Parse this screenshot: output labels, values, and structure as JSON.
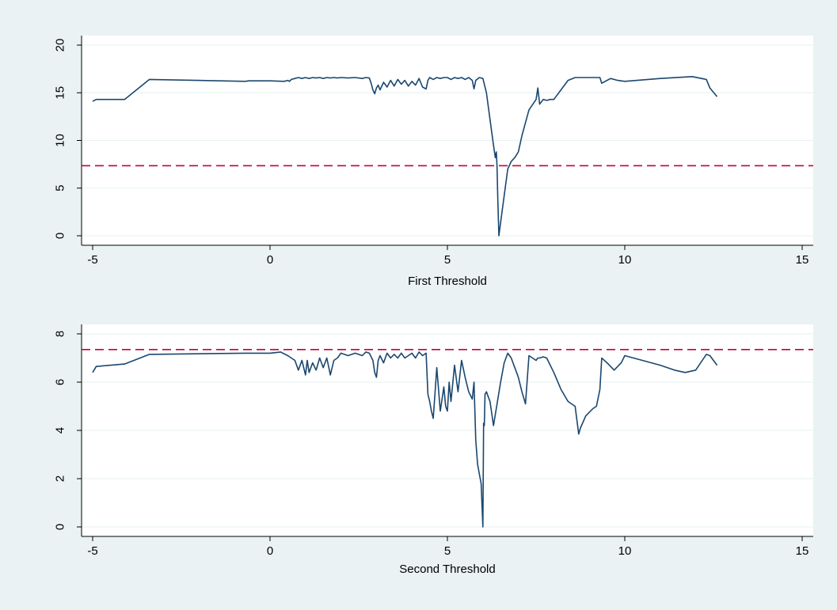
{
  "colors": {
    "outer_background": "#eaf2f3",
    "plot_background": "#ffffff",
    "grid": "#eaf2f3",
    "series_line": "#1a476f",
    "reference_line": "#c10534",
    "axis": "#000000"
  },
  "chart_data": [
    {
      "type": "line",
      "xlabel": "First Threshold",
      "ylabel": "",
      "xlim": [
        -5,
        15
      ],
      "ylim": [
        0,
        20
      ],
      "xticks": [
        -5,
        0,
        5,
        10,
        15
      ],
      "yticks": [
        0,
        5,
        10,
        15,
        20
      ],
      "grid": true,
      "reference_line": {
        "y": 7.35,
        "style": "dashed"
      },
      "series": [
        {
          "x": [
            -5.0,
            -4.9,
            -4.1,
            -3.4,
            -0.7,
            -0.6,
            0.0,
            0.4,
            0.5,
            0.55,
            0.6,
            0.7,
            0.8,
            0.9,
            1.0,
            1.1,
            1.2,
            1.3,
            1.4,
            1.5,
            1.6,
            1.7,
            1.8,
            1.9,
            2.0,
            2.2,
            2.4,
            2.6,
            2.7,
            2.8,
            2.85,
            2.9,
            2.95,
            3.0,
            3.05,
            3.1,
            3.2,
            3.3,
            3.4,
            3.5,
            3.6,
            3.7,
            3.8,
            3.9,
            4.0,
            4.1,
            4.2,
            4.3,
            4.4,
            4.45,
            4.5,
            4.6,
            4.7,
            4.8,
            4.9,
            5.0,
            5.1,
            5.2,
            5.3,
            5.4,
            5.5,
            5.6,
            5.7,
            5.75,
            5.8,
            5.9,
            6.0,
            6.1,
            6.2,
            6.3,
            6.35,
            6.38,
            6.4,
            6.42,
            6.45,
            6.5,
            6.6,
            6.7,
            6.8,
            6.9,
            7.0,
            7.1,
            7.3,
            7.5,
            7.55,
            7.6,
            7.7,
            7.8,
            7.9,
            8.0,
            8.2,
            8.4,
            8.6,
            9.3,
            9.35,
            9.6,
            9.8,
            10.0,
            11.0,
            11.9,
            12.3,
            12.4,
            12.6
          ],
          "values": [
            14.1,
            14.3,
            14.3,
            16.4,
            16.2,
            16.25,
            16.25,
            16.2,
            16.3,
            16.2,
            16.4,
            16.5,
            16.6,
            16.5,
            16.6,
            16.5,
            16.6,
            16.55,
            16.6,
            16.5,
            16.6,
            16.55,
            16.6,
            16.55,
            16.6,
            16.55,
            16.6,
            16.5,
            16.6,
            16.55,
            16.0,
            15.3,
            14.9,
            15.5,
            15.8,
            15.3,
            16.1,
            15.6,
            16.3,
            15.7,
            16.4,
            15.9,
            16.3,
            15.7,
            16.2,
            15.8,
            16.5,
            15.6,
            15.4,
            16.3,
            16.6,
            16.4,
            16.6,
            16.5,
            16.6,
            16.6,
            16.4,
            16.6,
            16.5,
            16.6,
            16.4,
            16.6,
            16.3,
            15.4,
            16.3,
            16.6,
            16.5,
            15.0,
            12.2,
            9.5,
            8.2,
            8.8,
            7.2,
            4.0,
            0.0,
            1.4,
            4.2,
            7.0,
            7.8,
            8.2,
            8.8,
            10.5,
            13.2,
            14.3,
            15.5,
            13.8,
            14.3,
            14.2,
            14.3,
            14.3,
            15.3,
            16.3,
            16.6,
            16.6,
            16.0,
            16.5,
            16.3,
            16.2,
            16.5,
            16.7,
            16.4,
            15.5,
            14.6
          ]
        }
      ]
    },
    {
      "type": "line",
      "xlabel": "Second Threshold",
      "ylabel": "",
      "xlim": [
        -5,
        15
      ],
      "ylim": [
        0,
        8
      ],
      "xticks": [
        -5,
        0,
        5,
        10,
        15
      ],
      "yticks": [
        0,
        2,
        4,
        6,
        8
      ],
      "grid": true,
      "reference_line": {
        "y": 7.35,
        "style": "dashed"
      },
      "series": [
        {
          "x": [
            -5.0,
            -4.9,
            -4.1,
            -3.4,
            -0.7,
            -0.6,
            0.0,
            0.3,
            0.5,
            0.7,
            0.8,
            0.9,
            1.0,
            1.05,
            1.1,
            1.2,
            1.3,
            1.4,
            1.5,
            1.6,
            1.7,
            1.8,
            1.9,
            2.0,
            2.2,
            2.4,
            2.6,
            2.7,
            2.8,
            2.9,
            2.95,
            3.0,
            3.05,
            3.1,
            3.2,
            3.3,
            3.4,
            3.5,
            3.6,
            3.7,
            3.8,
            3.9,
            4.0,
            4.1,
            4.2,
            4.3,
            4.4,
            4.45,
            4.5,
            4.55,
            4.6,
            4.7,
            4.8,
            4.9,
            4.95,
            5.0,
            5.05,
            5.1,
            5.2,
            5.3,
            5.4,
            5.5,
            5.6,
            5.7,
            5.75,
            5.8,
            5.85,
            5.9,
            5.95,
            6.0,
            6.02,
            6.04,
            6.06,
            6.1,
            6.15,
            6.2,
            6.3,
            6.4,
            6.5,
            6.6,
            6.7,
            6.8,
            6.9,
            7.0,
            7.1,
            7.2,
            7.3,
            7.5,
            7.55,
            7.6,
            7.7,
            7.8,
            8.0,
            8.2,
            8.4,
            8.5,
            8.6,
            8.7,
            8.75,
            8.9,
            9.1,
            9.2,
            9.3,
            9.35,
            9.5,
            9.7,
            9.9,
            10.0,
            11.0,
            11.4,
            11.7,
            12.0,
            12.3,
            12.4,
            12.6
          ],
          "values": [
            6.4,
            6.65,
            6.75,
            7.15,
            7.2,
            7.2,
            7.2,
            7.25,
            7.1,
            6.9,
            6.5,
            6.9,
            6.3,
            6.9,
            6.4,
            6.8,
            6.5,
            7.0,
            6.6,
            7.0,
            6.3,
            6.9,
            7.0,
            7.2,
            7.1,
            7.2,
            7.1,
            7.25,
            7.2,
            6.9,
            6.4,
            6.2,
            6.9,
            7.1,
            6.8,
            7.2,
            7.0,
            7.15,
            7.0,
            7.2,
            7.0,
            7.1,
            7.2,
            7.0,
            7.25,
            7.1,
            7.2,
            5.5,
            5.2,
            4.8,
            4.5,
            6.6,
            4.8,
            5.8,
            5.0,
            4.8,
            6.0,
            5.2,
            6.7,
            5.6,
            6.9,
            6.2,
            5.6,
            5.3,
            6.0,
            3.6,
            2.6,
            2.2,
            1.8,
            0.0,
            4.3,
            4.2,
            5.5,
            5.6,
            5.4,
            5.2,
            4.2,
            5.1,
            6.0,
            6.8,
            7.2,
            7.0,
            6.6,
            6.2,
            5.6,
            5.1,
            7.1,
            6.9,
            7.0,
            7.0,
            7.05,
            7.0,
            6.4,
            5.7,
            5.2,
            5.1,
            5.0,
            3.85,
            4.1,
            4.6,
            4.9,
            5.0,
            5.7,
            7.0,
            6.8,
            6.5,
            6.8,
            7.1,
            6.7,
            6.5,
            6.4,
            6.5,
            7.15,
            7.1,
            6.7
          ]
        }
      ]
    }
  ]
}
